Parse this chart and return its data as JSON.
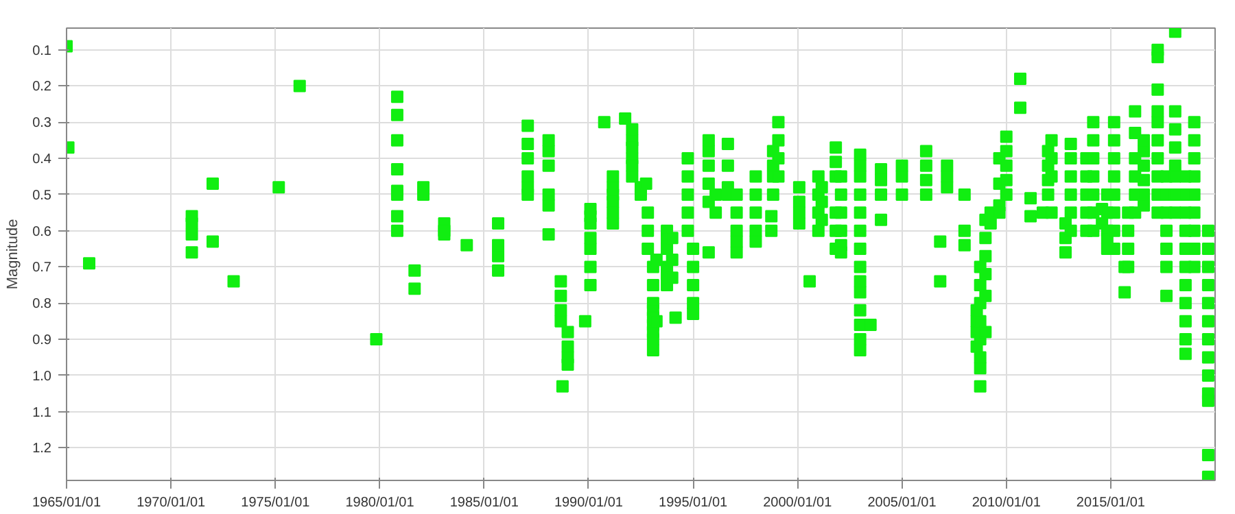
{
  "chart_data": {
    "type": "scatter",
    "ylabel": "Magnitude",
    "marker": "square",
    "grid": true,
    "xlim": [
      "1965-01-01",
      "2019-12-31"
    ],
    "xticks": [
      {
        "value": "1965-01-01",
        "label": "1965/01/01"
      },
      {
        "value": "1970-01-01",
        "label": "1970/01/01"
      },
      {
        "value": "1975-01-01",
        "label": "1975/01/01"
      },
      {
        "value": "1980-01-01",
        "label": "1980/01/01"
      },
      {
        "value": "1985-01-01",
        "label": "1985/01/01"
      },
      {
        "value": "1990-01-01",
        "label": "1990/01/01"
      },
      {
        "value": "1995-01-01",
        "label": "1995/01/01"
      },
      {
        "value": "2000-01-01",
        "label": "2000/01/01"
      },
      {
        "value": "2005-01-01",
        "label": "2005/01/01"
      },
      {
        "value": "2010-01-01",
        "label": "2010/01/01"
      },
      {
        "value": "2015-01-01",
        "label": "2015/01/01"
      }
    ],
    "ylim": [
      1.29,
      0.04
    ],
    "yticks": [
      0.1,
      0.2,
      0.3,
      0.4,
      0.5,
      0.6,
      0.7,
      0.8,
      0.9,
      {
        "value": 1.0,
        "label": "1.0"
      },
      1.1,
      1.2
    ],
    "series": [
      {
        "color": "#11ee11",
        "x": [
          "1965-01",
          "1965-02",
          "1966-02",
          "1971-01",
          "1971-01",
          "1971-01",
          "1971-01",
          "1972-01",
          "1972-01",
          "1973-01",
          "1975-03",
          "1976-03",
          "1979-11",
          "1980-11",
          "1980-11",
          "1980-11",
          "1980-11",
          "1980-11",
          "1980-11",
          "1980-11",
          "1980-11",
          "1981-09",
          "1981-09",
          "1982-02",
          "1982-02",
          "1983-02",
          "1983-02",
          "1983-02",
          "1984-03",
          "1985-09",
          "1985-09",
          "1985-09",
          "1985-09",
          "1987-02",
          "1987-02",
          "1987-02",
          "1987-02",
          "1987-02",
          "1987-02",
          "1988-02",
          "1988-02",
          "1988-02",
          "1988-02",
          "1988-02",
          "1988-02",
          "1988-09",
          "1988-09",
          "1988-09",
          "1988-09",
          "1989-01",
          "1989-01",
          "1989-01",
          "1989-01",
          "1988-10",
          "1989-11",
          "1990-02",
          "1990-02",
          "1990-02",
          "1990-02",
          "1990-02",
          "1990-02",
          "1990-02",
          "1990-10",
          "1991-03",
          "1991-03",
          "1991-03",
          "1991-03",
          "1991-03",
          "1991-03",
          "1991-10",
          "1992-02",
          "1992-02",
          "1992-02",
          "1992-02",
          "1992-02",
          "1992-02",
          "1992-07",
          "1992-07",
          "1992-10",
          "1992-11",
          "1992-11",
          "1992-11",
          "1993-02",
          "1993-02",
          "1993-02",
          "1993-02",
          "1993-02",
          "1993-02",
          "1993-02",
          "1993-02",
          "1993-02",
          "1993-04",
          "1993-04",
          "1993-10",
          "1993-10",
          "1993-10",
          "1993-10",
          "1993-10",
          "1993-10",
          "1994-01",
          "1994-01",
          "1994-01",
          "1994-03",
          "1994-10",
          "1994-10",
          "1994-10",
          "1994-10",
          "1994-10",
          "1995-01",
          "1995-01",
          "1995-01",
          "1995-01",
          "1995-01",
          "1995-10",
          "1995-10",
          "1995-10",
          "1995-10",
          "1995-10",
          "1995-10",
          "1996-02",
          "1996-02",
          "1996-09",
          "1996-09",
          "1996-09",
          "1996-09",
          "1997-02",
          "1997-02",
          "1997-02",
          "1997-02",
          "1997-02",
          "1998-01",
          "1998-01",
          "1998-01",
          "1998-01",
          "1998-01",
          "1998-10",
          "1998-10",
          "1998-11",
          "1998-11",
          "1998-11",
          "1998-11",
          "1999-02",
          "1999-02",
          "1999-02",
          "1999-02",
          "2000-02",
          "2000-02",
          "2000-02",
          "2000-02",
          "2000-08",
          "2001-01",
          "2001-01",
          "2001-01",
          "2001-01",
          "2001-03",
          "2001-03",
          "2001-03",
          "2001-11",
          "2001-11",
          "2001-11",
          "2001-11",
          "2001-11",
          "2001-11",
          "2002-02",
          "2002-02",
          "2002-02",
          "2002-02",
          "2002-02",
          "2002-02",
          "2003-01",
          "2003-01",
          "2003-01",
          "2003-01",
          "2003-01",
          "2003-01",
          "2003-01",
          "2003-01",
          "2003-01",
          "2003-01",
          "2003-01",
          "2003-01",
          "2003-01",
          "2003-01",
          "2003-07",
          "2004-01",
          "2004-01",
          "2004-01",
          "2004-01",
          "2005-01",
          "2005-01",
          "2005-01",
          "2006-03",
          "2006-03",
          "2006-03",
          "2006-03",
          "2006-11",
          "2006-11",
          "2007-03",
          "2007-03",
          "2007-03",
          "2008-01",
          "2008-01",
          "2008-01",
          "2008-08",
          "2008-08",
          "2008-08",
          "2008-08",
          "2008-10",
          "2008-10",
          "2008-10",
          "2008-10",
          "2008-10",
          "2008-10",
          "2008-10",
          "2008-10",
          "2009-01",
          "2009-01",
          "2009-01",
          "2009-01",
          "2009-01",
          "2009-01",
          "2009-04",
          "2009-04",
          "2009-09",
          "2009-09",
          "2009-09",
          "2009-09",
          "2010-01",
          "2010-01",
          "2010-01",
          "2010-01",
          "2010-01",
          "2010-09",
          "2010-09",
          "2011-03",
          "2011-03",
          "2011-10",
          "2012-01",
          "2012-01",
          "2012-01",
          "2012-01",
          "2012-03",
          "2012-03",
          "2012-03",
          "2012-03",
          "2012-11",
          "2012-11",
          "2012-11",
          "2013-02",
          "2013-02",
          "2013-02",
          "2013-02",
          "2013-02",
          "2013-02",
          "2013-11",
          "2013-11",
          "2013-11",
          "2013-11",
          "2013-11",
          "2014-03",
          "2014-03",
          "2014-03",
          "2014-03",
          "2014-03",
          "2014-03",
          "2014-03",
          "2014-08",
          "2014-08",
          "2014-11",
          "2014-11",
          "2014-11",
          "2014-11",
          "2014-11",
          "2015-03",
          "2015-03",
          "2015-03",
          "2015-03",
          "2015-03",
          "2015-03",
          "2015-03",
          "2015-03",
          "2015-09",
          "2015-09",
          "2015-11",
          "2015-11",
          "2015-11",
          "2015-11",
          "2016-03",
          "2016-03",
          "2016-03",
          "2016-03",
          "2016-03",
          "2016-03",
          "2016-08",
          "2016-08",
          "2016-08",
          "2016-08",
          "2016-08",
          "2016-08",
          "2017-04",
          "2017-04",
          "2017-04",
          "2017-04",
          "2017-04",
          "2017-04",
          "2017-04",
          "2017-04",
          "2017-04",
          "2017-04",
          "2017-09",
          "2017-09",
          "2017-09",
          "2017-09",
          "2017-09",
          "2017-09",
          "2017-09",
          "2018-02",
          "2018-02",
          "2018-02",
          "2018-02",
          "2018-02",
          "2018-02",
          "2018-02",
          "2018-02",
          "2018-08",
          "2018-08",
          "2018-08",
          "2018-08",
          "2018-08",
          "2018-08",
          "2018-08",
          "2018-08",
          "2018-08",
          "2018-08",
          "2018-08",
          "2019-01",
          "2019-01",
          "2019-01",
          "2019-01",
          "2019-01",
          "2019-01",
          "2019-01",
          "2019-01",
          "2019-01",
          "2019-09",
          "2019-09",
          "2019-09",
          "2019-09",
          "2019-09",
          "2019-09",
          "2019-09",
          "2019-09",
          "2019-09",
          "2019-09",
          "2019-09",
          "2019-09",
          "2019-09"
        ],
        "values": [
          0.09,
          0.37,
          0.69,
          0.56,
          0.58,
          0.61,
          0.66,
          0.47,
          0.63,
          0.74,
          0.48,
          0.2,
          0.9,
          0.23,
          0.28,
          0.35,
          0.43,
          0.49,
          0.5,
          0.56,
          0.6,
          0.71,
          0.76,
          0.48,
          0.5,
          0.58,
          0.6,
          0.61,
          0.64,
          0.58,
          0.64,
          0.67,
          0.71,
          0.31,
          0.36,
          0.4,
          0.45,
          0.48,
          0.5,
          0.35,
          0.38,
          0.42,
          0.5,
          0.53,
          0.61,
          0.74,
          0.78,
          0.82,
          0.85,
          0.88,
          0.92,
          0.95,
          0.97,
          1.03,
          0.85,
          0.75,
          0.7,
          0.65,
          0.62,
          0.58,
          0.56,
          0.54,
          0.3,
          0.45,
          0.48,
          0.5,
          0.52,
          0.55,
          0.58,
          0.29,
          0.32,
          0.35,
          0.37,
          0.4,
          0.42,
          0.45,
          0.48,
          0.5,
          0.47,
          0.55,
          0.6,
          0.65,
          0.7,
          0.75,
          0.8,
          0.82,
          0.84,
          0.86,
          0.88,
          0.9,
          0.93,
          0.68,
          0.85,
          0.6,
          0.62,
          0.65,
          0.7,
          0.72,
          0.75,
          0.62,
          0.68,
          0.73,
          0.84,
          0.4,
          0.45,
          0.5,
          0.55,
          0.6,
          0.65,
          0.7,
          0.75,
          0.8,
          0.83,
          0.35,
          0.38,
          0.42,
          0.47,
          0.52,
          0.66,
          0.5,
          0.55,
          0.36,
          0.42,
          0.48,
          0.5,
          0.5,
          0.55,
          0.6,
          0.63,
          0.66,
          0.45,
          0.5,
          0.55,
          0.6,
          0.63,
          0.56,
          0.6,
          0.38,
          0.42,
          0.45,
          0.5,
          0.3,
          0.35,
          0.4,
          0.45,
          0.48,
          0.52,
          0.55,
          0.58,
          0.74,
          0.45,
          0.5,
          0.55,
          0.6,
          0.48,
          0.52,
          0.57,
          0.37,
          0.41,
          0.45,
          0.55,
          0.6,
          0.65,
          0.45,
          0.5,
          0.55,
          0.6,
          0.64,
          0.66,
          0.39,
          0.42,
          0.45,
          0.5,
          0.55,
          0.6,
          0.65,
          0.7,
          0.74,
          0.77,
          0.82,
          0.86,
          0.9,
          0.93,
          0.86,
          0.43,
          0.46,
          0.5,
          0.57,
          0.42,
          0.45,
          0.5,
          0.38,
          0.42,
          0.46,
          0.5,
          0.63,
          0.74,
          0.42,
          0.45,
          0.48,
          0.5,
          0.6,
          0.64,
          0.82,
          0.85,
          0.88,
          0.92,
          0.7,
          0.75,
          0.8,
          0.85,
          0.9,
          0.95,
          0.98,
          1.03,
          0.57,
          0.62,
          0.67,
          0.72,
          0.78,
          0.88,
          0.55,
          0.58,
          0.4,
          0.47,
          0.53,
          0.55,
          0.34,
          0.38,
          0.42,
          0.46,
          0.5,
          0.18,
          0.26,
          0.51,
          0.56,
          0.55,
          0.38,
          0.42,
          0.46,
          0.5,
          0.35,
          0.4,
          0.45,
          0.55,
          0.58,
          0.62,
          0.66,
          0.36,
          0.4,
          0.45,
          0.5,
          0.55,
          0.6,
          0.4,
          0.45,
          0.5,
          0.55,
          0.6,
          0.3,
          0.35,
          0.4,
          0.45,
          0.5,
          0.55,
          0.6,
          0.54,
          0.58,
          0.5,
          0.55,
          0.6,
          0.62,
          0.65,
          0.3,
          0.35,
          0.4,
          0.45,
          0.5,
          0.55,
          0.6,
          0.65,
          0.7,
          0.77,
          0.55,
          0.6,
          0.65,
          0.7,
          0.27,
          0.33,
          0.4,
          0.45,
          0.5,
          0.55,
          0.35,
          0.38,
          0.42,
          0.46,
          0.5,
          0.53,
          0.1,
          0.12,
          0.21,
          0.27,
          0.3,
          0.35,
          0.4,
          0.45,
          0.5,
          0.55,
          0.45,
          0.5,
          0.55,
          0.6,
          0.65,
          0.7,
          0.78,
          0.05,
          0.27,
          0.32,
          0.37,
          0.42,
          0.45,
          0.5,
          0.55,
          0.45,
          0.5,
          0.55,
          0.6,
          0.65,
          0.7,
          0.75,
          0.8,
          0.85,
          0.9,
          0.94,
          0.3,
          0.35,
          0.4,
          0.45,
          0.5,
          0.55,
          0.6,
          0.65,
          0.7,
          0.6,
          0.65,
          0.7,
          0.75,
          0.8,
          0.85,
          0.9,
          0.95,
          1.0,
          1.05,
          1.07,
          1.22,
          1.28
        ]
      }
    ]
  }
}
